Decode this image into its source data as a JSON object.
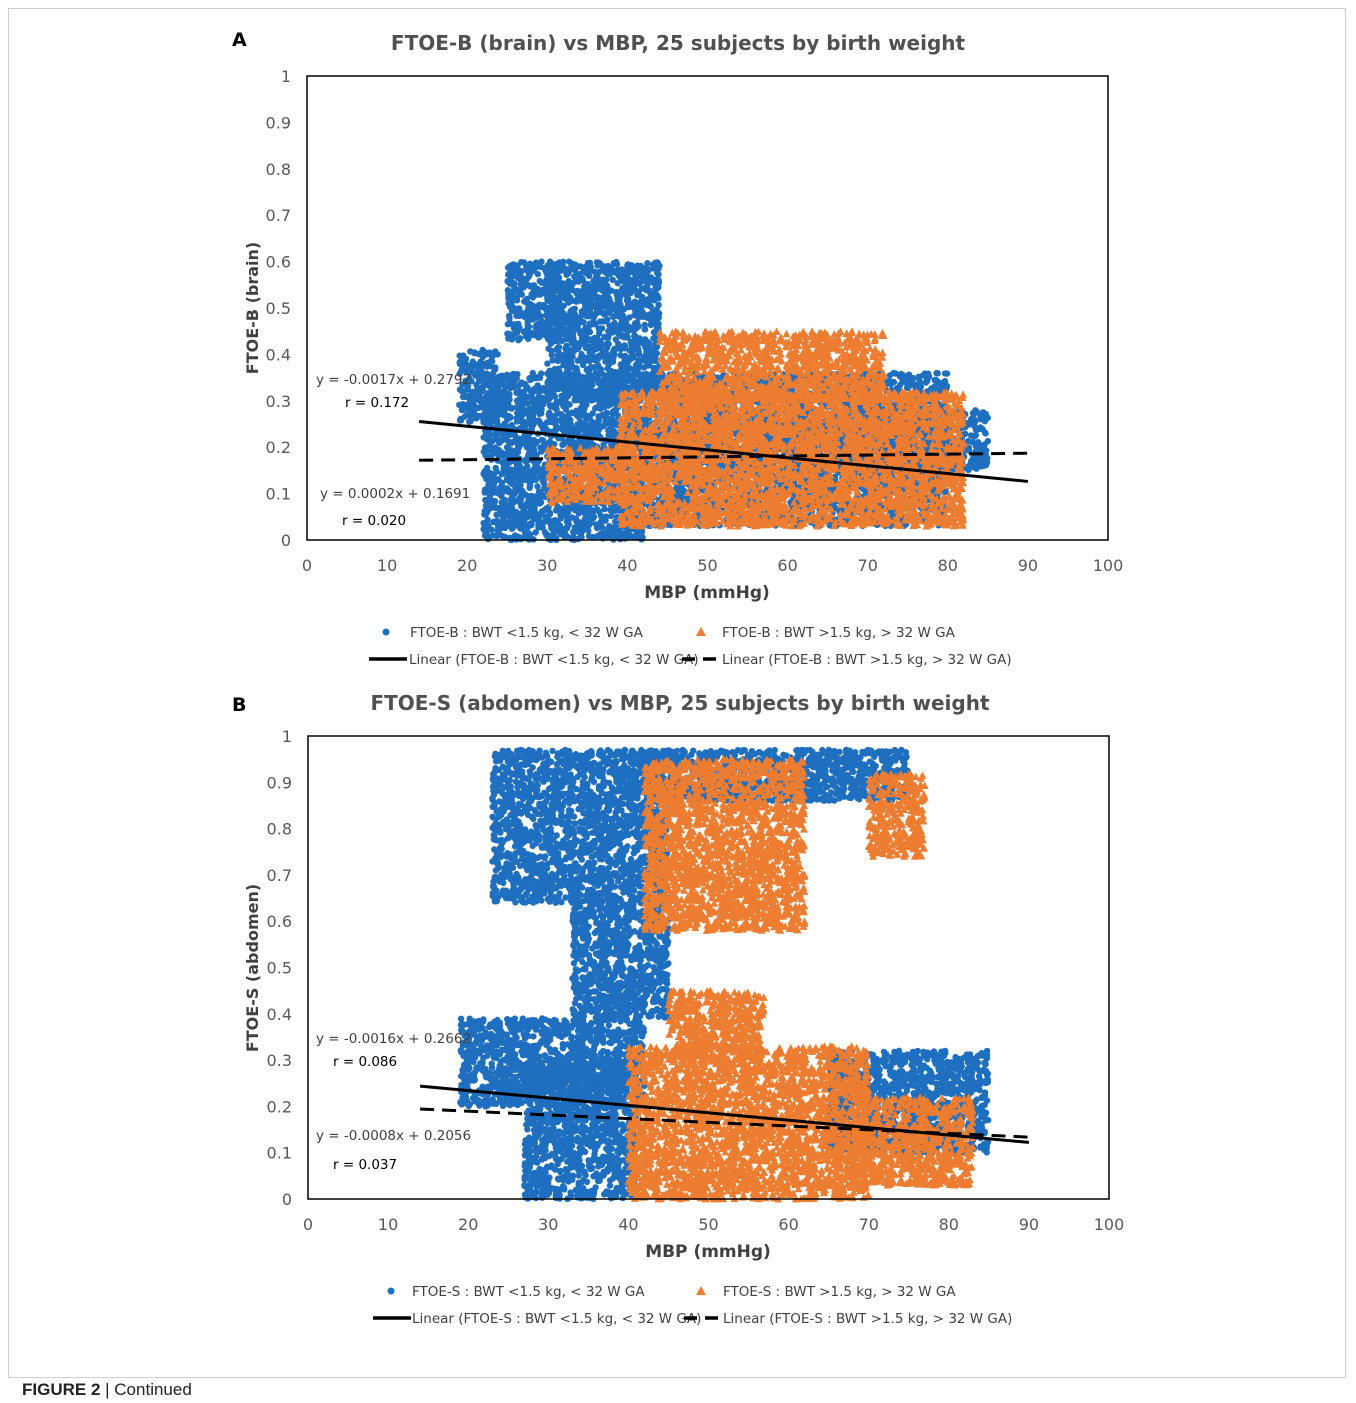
{
  "caption": {
    "label": "FIGURE 2",
    "separator": " | ",
    "text": "Continued"
  },
  "colors": {
    "blue": "#1F6FC0",
    "orange": "#ED7D31",
    "line": "#000000"
  },
  "chart_data": [
    {
      "panel": "A",
      "type": "scatter",
      "title": "FTOE-B (brain) vs MBP, 25 subjects by birth weight",
      "xlabel": "MBP (mmHg)",
      "ylabel": "FTOE-B (brain)",
      "xlim": [
        0,
        100
      ],
      "ylim": [
        0,
        1
      ],
      "xticks": [
        "0",
        "10",
        "20",
        "30",
        "40",
        "50",
        "60",
        "70",
        "80",
        "90",
        "100"
      ],
      "yticks": [
        "0",
        "0.1",
        "0.2",
        "0.3",
        "0.4",
        "0.5",
        "0.6",
        "0.7",
        "0.8",
        "0.9",
        "1"
      ],
      "grid": false,
      "legend_position": "bottom",
      "series": [
        {
          "name": "FTOE-B : BWT <1.5 kg, < 32 W GA",
          "marker": "circle",
          "color": "#1F6FC0",
          "clusters": [
            {
              "x": [
                22,
                42
              ],
              "y": [
                0.0,
                0.36
              ]
            },
            {
              "x": [
                25,
                32
              ],
              "y": [
                0.43,
                0.6
              ]
            },
            {
              "x": [
                30,
                44
              ],
              "y": [
                0.3,
                0.6
              ]
            },
            {
              "x": [
                19,
                24
              ],
              "y": [
                0.25,
                0.41
              ]
            },
            {
              "x": [
                60,
                85
              ],
              "y": [
                0.15,
                0.28
              ]
            },
            {
              "x": [
                42,
                80
              ],
              "y": [
                0.03,
                0.36
              ]
            }
          ]
        },
        {
          "name": "FTOE-B : BWT >1.5 kg, > 32 W GA",
          "marker": "triangle",
          "color": "#ED7D31",
          "clusters": [
            {
              "x": [
                39,
                82
              ],
              "y": [
                0.03,
                0.32
              ]
            },
            {
              "x": [
                44,
                72
              ],
              "y": [
                0.3,
                0.45
              ]
            },
            {
              "x": [
                30,
                40
              ],
              "y": [
                0.08,
                0.2
              ]
            }
          ]
        }
      ],
      "trendlines": [
        {
          "name": "Linear (FTOE-B : BWT <1.5 kg, < 32 W GA)",
          "style": "solid",
          "slope": -0.0017,
          "intercept": 0.2792,
          "x_range": [
            14,
            90
          ],
          "equation": "y = -0.0017x + 0.2792",
          "r": "r = 0.172"
        },
        {
          "name": "Linear (FTOE-B : BWT >1.5 kg, > 32 W GA)",
          "style": "dashed",
          "slope": 0.0002,
          "intercept": 0.1691,
          "x_range": [
            14,
            90
          ],
          "equation": "y = 0.0002x + 0.1691",
          "r": "r = 0.020"
        }
      ]
    },
    {
      "panel": "B",
      "type": "scatter",
      "title": "FTOE-S (abdomen) vs MBP, 25 subjects by birth weight",
      "xlabel": "MBP (mmHg)",
      "ylabel": "FTOE-S (abdomen)",
      "xlim": [
        0,
        100
      ],
      "ylim": [
        0,
        1
      ],
      "xticks": [
        "0",
        "10",
        "20",
        "30",
        "40",
        "50",
        "60",
        "70",
        "80",
        "90",
        "100"
      ],
      "yticks": [
        "0",
        "0.1",
        "0.2",
        "0.3",
        "0.4",
        "0.5",
        "0.6",
        "0.7",
        "0.8",
        "0.9",
        "1"
      ],
      "grid": false,
      "legend_position": "bottom",
      "series": [
        {
          "name": "FTOE-S : BWT <1.5 kg, < 32 W GA",
          "marker": "circle",
          "color": "#1F6FC0",
          "clusters": [
            {
              "x": [
                19,
                42
              ],
              "y": [
                0.2,
                0.39
              ]
            },
            {
              "x": [
                27,
                41
              ],
              "y": [
                0.0,
                0.3
              ]
            },
            {
              "x": [
                23,
                45
              ],
              "y": [
                0.64,
                0.97
              ]
            },
            {
              "x": [
                33,
                45
              ],
              "y": [
                0.39,
                0.65
              ]
            },
            {
              "x": [
                40,
                75
              ],
              "y": [
                0.86,
                0.97
              ]
            },
            {
              "x": [
                65,
                85
              ],
              "y": [
                0.1,
                0.32
              ]
            }
          ]
        },
        {
          "name": "FTOE-S : BWT >1.5 kg, > 32 W GA",
          "marker": "triangle",
          "color": "#ED7D31",
          "clusters": [
            {
              "x": [
                40,
                70
              ],
              "y": [
                0.0,
                0.33
              ]
            },
            {
              "x": [
                45,
                57
              ],
              "y": [
                0.3,
                0.45
              ]
            },
            {
              "x": [
                42,
                62
              ],
              "y": [
                0.58,
                0.95
              ]
            },
            {
              "x": [
                68,
                83
              ],
              "y": [
                0.03,
                0.22
              ]
            },
            {
              "x": [
                70,
                77
              ],
              "y": [
                0.74,
                0.92
              ]
            }
          ]
        }
      ],
      "trendlines": [
        {
          "name": "Linear (FTOE-S : BWT <1.5 kg, < 32 W GA)",
          "style": "solid",
          "slope": -0.0016,
          "intercept": 0.2662,
          "x_range": [
            14,
            90
          ],
          "equation": "y = -0.0016x + 0.2662",
          "r": "r = 0.086"
        },
        {
          "name": "Linear (FTOE-S : BWT >1.5 kg, > 32 W GA)",
          "style": "dashed",
          "slope": -0.0008,
          "intercept": 0.2056,
          "x_range": [
            14,
            90
          ],
          "equation": "y = -0.0008x + 0.2056",
          "r": "r = 0.037"
        }
      ]
    }
  ]
}
